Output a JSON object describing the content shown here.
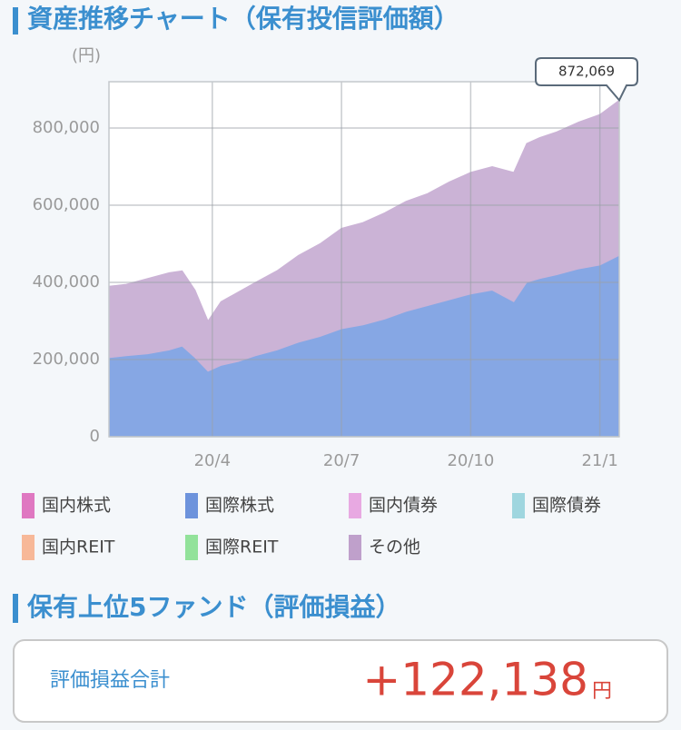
{
  "header": {
    "title": "資産推移チャート（保有投信評価額）"
  },
  "chart_data": {
    "type": "area",
    "stacked": true,
    "y_unit_label": "(円)",
    "x": [
      0.6,
      1,
      1.5,
      2,
      2.3,
      2.6,
      2.9,
      3.2,
      3.6,
      4,
      4.5,
      5,
      5.5,
      6,
      6.5,
      7,
      7.5,
      8,
      8.5,
      9,
      9.5,
      10,
      10.3,
      10.6,
      11,
      11.5,
      12,
      12.45
    ],
    "series": [
      {
        "name": "国際株式",
        "color": "#86a7e4",
        "values": [
          205000,
          210000,
          215000,
          225000,
          235000,
          205000,
          170000,
          185000,
          195000,
          210000,
          225000,
          245000,
          260000,
          280000,
          290000,
          305000,
          325000,
          340000,
          355000,
          370000,
          380000,
          350000,
          400000,
          410000,
          420000,
          435000,
          445000,
          470000
        ]
      },
      {
        "name": "その他",
        "color": "#cbb3d6",
        "values": [
          185000,
          185000,
          195000,
          200000,
          195000,
          175000,
          130000,
          165000,
          180000,
          190000,
          205000,
          225000,
          240000,
          260000,
          265000,
          275000,
          285000,
          290000,
          305000,
          315000,
          320000,
          335000,
          360000,
          365000,
          370000,
          380000,
          390000,
          402069
        ]
      }
    ],
    "xlim": [
      0.6,
      12.45
    ],
    "xticks": [
      {
        "value": 3,
        "label": "20/4"
      },
      {
        "value": 6,
        "label": "20/7"
      },
      {
        "value": 9,
        "label": "20/10"
      },
      {
        "value": 12,
        "label": "21/1"
      }
    ],
    "ylim": [
      0,
      920000
    ],
    "yticks": [
      0,
      {
        "value": 200000,
        "label": "200,000"
      },
      {
        "value": 400000,
        "label": "400,000"
      },
      {
        "value": 600000,
        "label": "600,000"
      },
      {
        "value": 800000,
        "label": "800,000"
      }
    ],
    "grid": true,
    "annotation": {
      "text": "872,069",
      "value": 872069
    },
    "legend": [
      {
        "name": "国内株式",
        "color": "#df78c1"
      },
      {
        "name": "国際株式",
        "color": "#6d93dc"
      },
      {
        "name": "国内債券",
        "color": "#e8a9e2"
      },
      {
        "name": "国際債券",
        "color": "#9fd6df"
      },
      {
        "name": "国内REIT",
        "color": "#f7b898"
      },
      {
        "name": "国際REIT",
        "color": "#92e29a"
      },
      {
        "name": "その他",
        "color": "#bfa0cb"
      }
    ]
  },
  "funds": {
    "title": "保有上位5ファンド（評価損益）"
  },
  "summary": {
    "label": "評価損益合計",
    "value": "+122,138",
    "unit": "円"
  }
}
